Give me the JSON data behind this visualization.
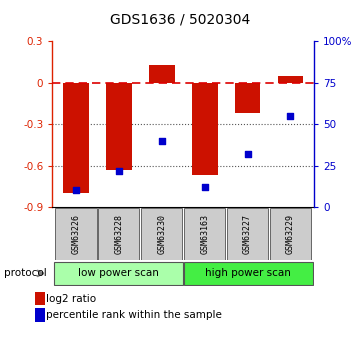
{
  "title": "GDS1636 / 5020304",
  "samples": [
    "GSM63226",
    "GSM63228",
    "GSM63230",
    "GSM63163",
    "GSM63227",
    "GSM63229"
  ],
  "log2_ratio": [
    -0.8,
    -0.63,
    0.13,
    -0.67,
    -0.22,
    0.05
  ],
  "percentile_rank": [
    10,
    22,
    40,
    12,
    32,
    55
  ],
  "bar_color": "#cc1100",
  "dot_color": "#0000cc",
  "ylim_left": [
    -0.9,
    0.3
  ],
  "ylim_right": [
    0,
    100
  ],
  "yticks_left": [
    0.3,
    0.0,
    -0.3,
    -0.6,
    -0.9
  ],
  "ytick_labels_left": [
    "0.3",
    "0",
    "-0.3",
    "-0.6",
    "-0.9"
  ],
  "yticks_right": [
    100,
    75,
    50,
    25,
    0
  ],
  "ytick_labels_right": [
    "100%",
    "75",
    "50",
    "25",
    "0"
  ],
  "protocols": [
    "low power scan",
    "high power scan"
  ],
  "protocol_colors_low": "#aaffaa",
  "protocol_colors_high": "#44ee44",
  "label_color_left": "#dd2200",
  "label_color_right": "#0000cc",
  "hline_color": "#dd0000",
  "dotline_color": "#555555",
  "legend_bar_label": "log2 ratio",
  "legend_dot_label": "percentile rank within the sample",
  "protocol_label": "protocol"
}
